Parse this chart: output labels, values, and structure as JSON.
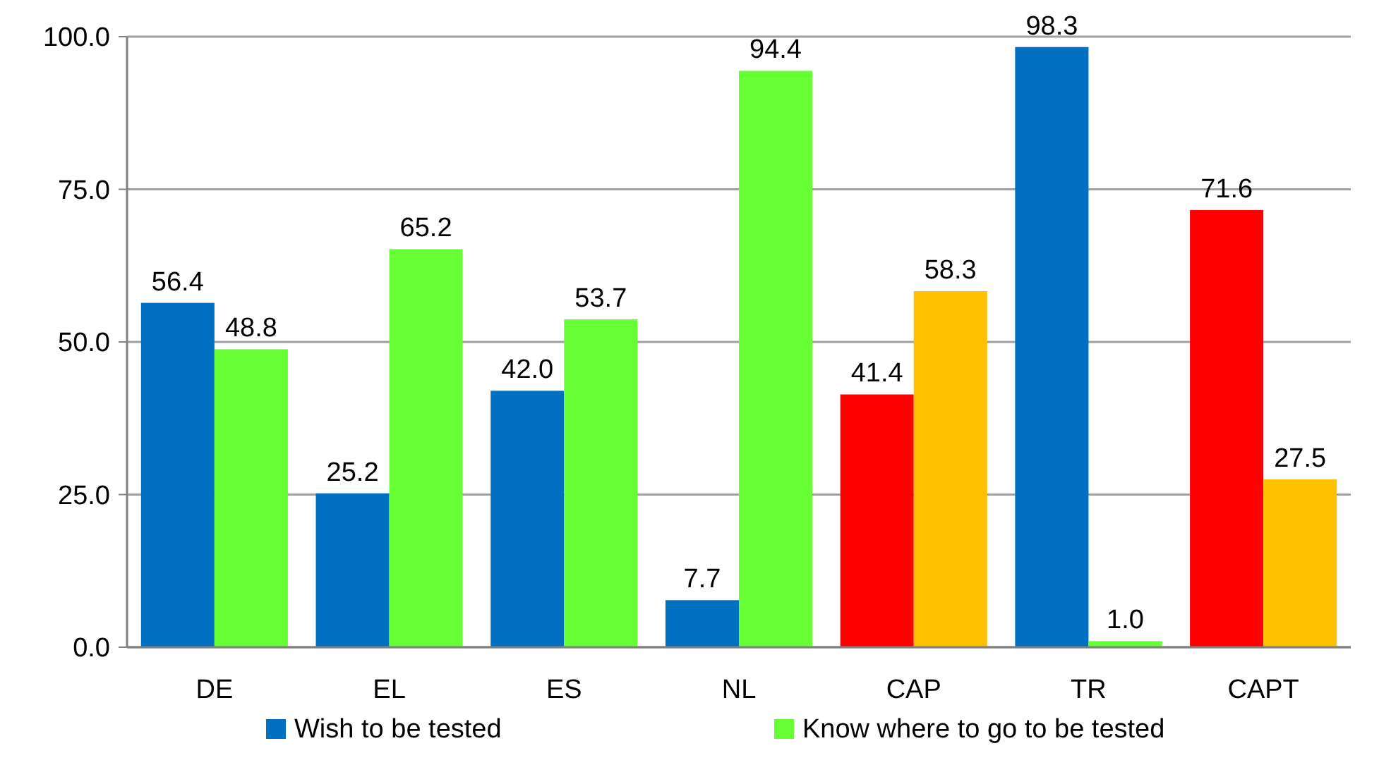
{
  "chart_data": {
    "type": "bar",
    "categories": [
      "DE",
      "EL",
      "ES",
      "NL",
      "CAP",
      "TR",
      "CAPT"
    ],
    "series": [
      {
        "name": "Wish to be tested",
        "color": "#0070c0",
        "colors": [
          "#0070c0",
          "#0070c0",
          "#0070c0",
          "#0070c0",
          "#ff0000",
          "#0070c0",
          "#ff0000"
        ],
        "values": [
          56.4,
          25.2,
          42.0,
          7.7,
          41.4,
          98.3,
          71.6
        ],
        "value_labels": [
          "56.4",
          "25.2",
          "42.0",
          "7.7",
          "41.4",
          "98.3",
          "71.6"
        ]
      },
      {
        "name": "Know where to go to be tested",
        "color": "#66ff33",
        "colors": [
          "#66ff33",
          "#66ff33",
          "#66ff33",
          "#66ff33",
          "#ffc000",
          "#66ff33",
          "#ffc000"
        ],
        "values": [
          48.8,
          65.2,
          53.7,
          94.4,
          58.3,
          1.0,
          27.5
        ],
        "value_labels": [
          "48.8",
          "65.2",
          "53.7",
          "94.4",
          "58.3",
          "1.0",
          "27.5"
        ]
      }
    ],
    "ylim": [
      0,
      100
    ],
    "yticks": [
      {
        "value": 0,
        "label": "0.0"
      },
      {
        "value": 25,
        "label": "25.0"
      },
      {
        "value": 50,
        "label": "50.0"
      },
      {
        "value": 75,
        "label": "75.0"
      },
      {
        "value": 100,
        "label": "100.0"
      }
    ],
    "grid": "y",
    "legend": "bottom"
  }
}
